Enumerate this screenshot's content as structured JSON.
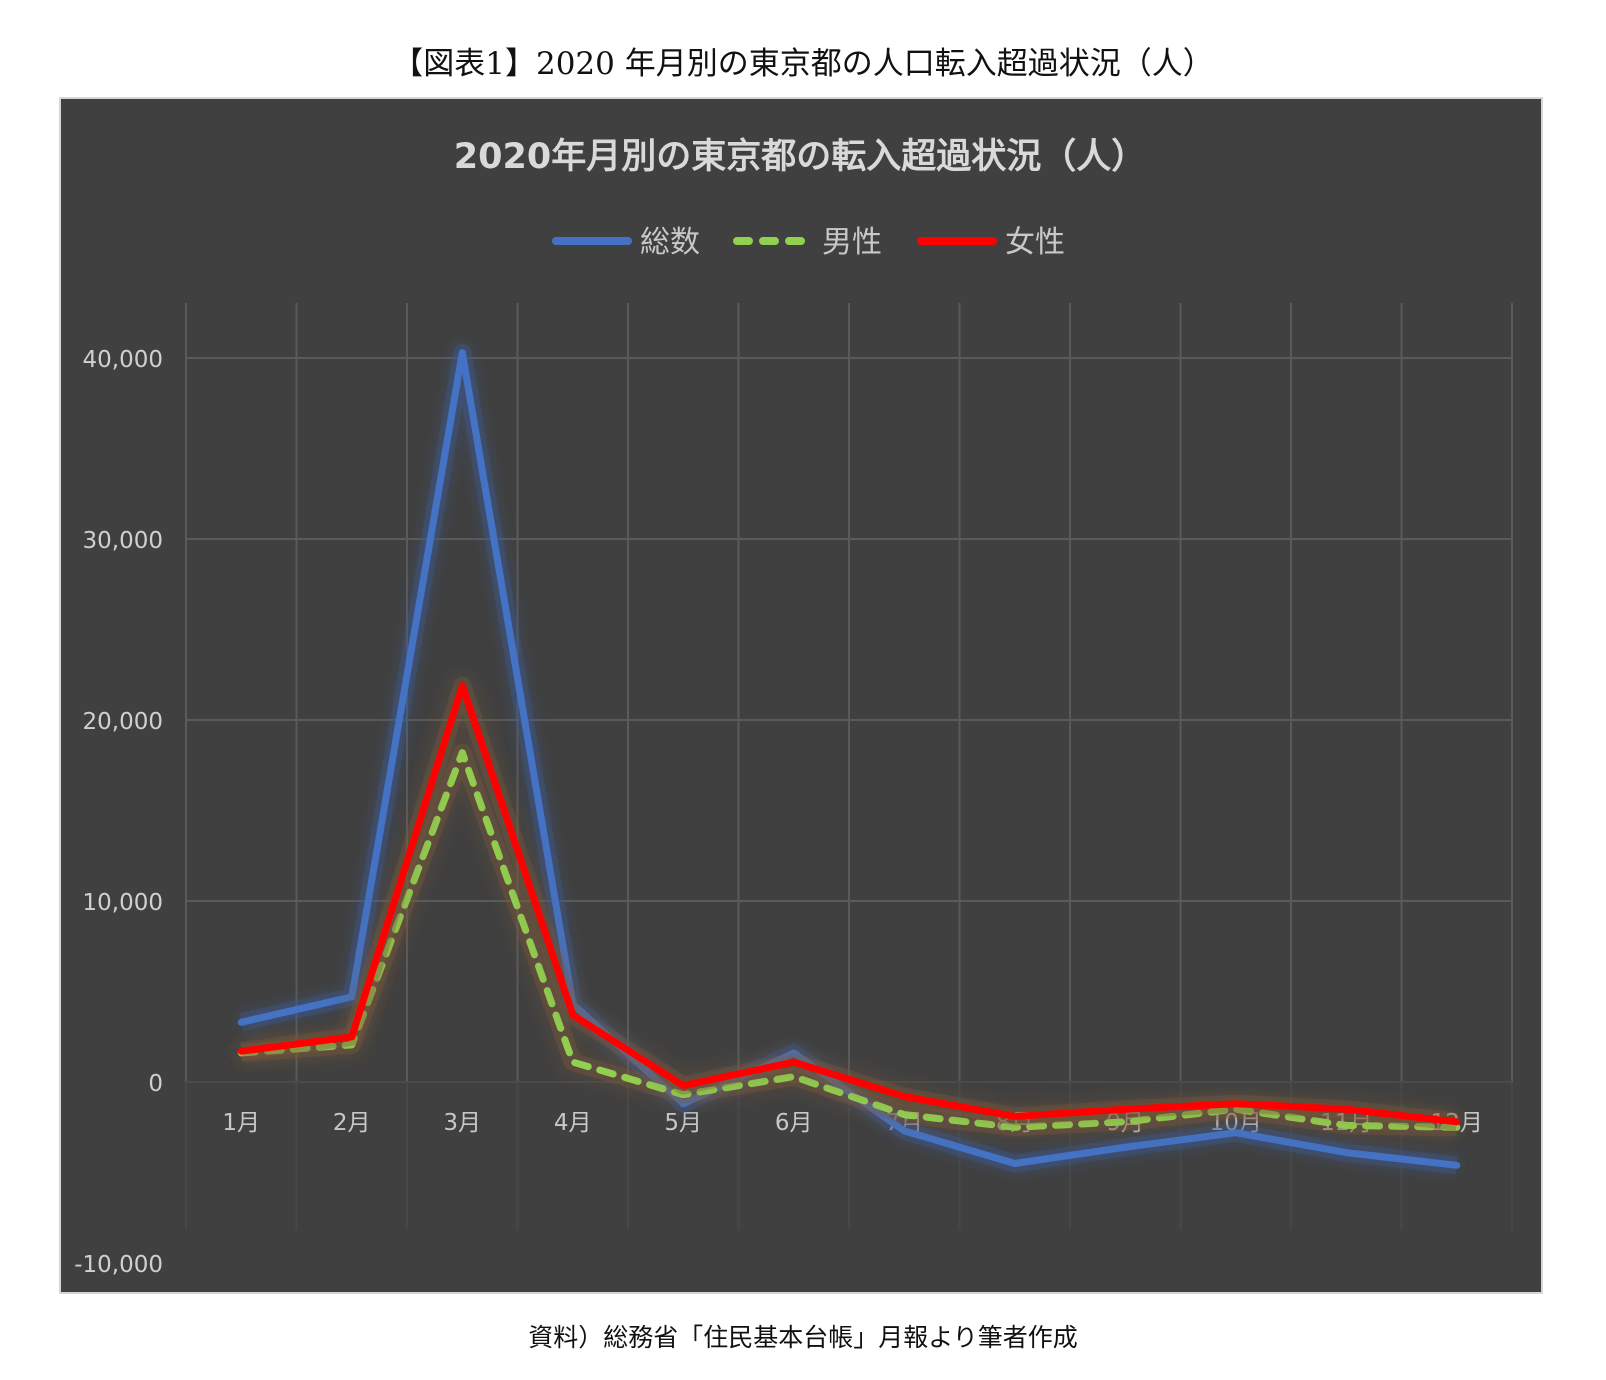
{
  "figure": {
    "caption_title": "【図表1】2020 年月別の東京都の人口転入超過状況（人）",
    "source_note": "資料）総務省「住民基本台帳」月報より筆者作成"
  },
  "colors": {
    "background": "#404040",
    "grid": "#5a5a5a",
    "text": "#d9d9d9",
    "total": "#4472c4",
    "male": "#92d050",
    "female": "#ff0000"
  },
  "chart_data": {
    "type": "line",
    "title": "2020年月別の東京都の転入超過状況（人）",
    "xlabel": "",
    "ylabel": "",
    "categories": [
      "1月",
      "2月",
      "3月",
      "4月",
      "5月",
      "6月",
      "7月",
      "8月",
      "9月",
      "10月",
      "11月",
      "12月"
    ],
    "series": [
      {
        "name": "総数",
        "style": "solid",
        "color": "#4472c4",
        "values": [
          3300,
          4700,
          40300,
          4300,
          -1200,
          1600,
          -2700,
          -4500,
          -3600,
          -2800,
          -3900,
          -4600
        ]
      },
      {
        "name": "男性",
        "style": "dashed",
        "color": "#92d050",
        "values": [
          1600,
          2050,
          18200,
          1100,
          -700,
          300,
          -1800,
          -2500,
          -2200,
          -1500,
          -2400,
          -2500
        ]
      },
      {
        "name": "女性",
        "style": "solid",
        "color": "#ff0000",
        "values": [
          1700,
          2500,
          21900,
          3700,
          -200,
          1100,
          -800,
          -1900,
          -1500,
          -1200,
          -1500,
          -2200
        ]
      }
    ],
    "yticks": [
      -10000,
      0,
      10000,
      20000,
      30000,
      40000
    ],
    "ytick_labels": [
      "-10,000",
      "0",
      "10,000",
      "20,000",
      "30,000",
      "40,000"
    ],
    "ylim": [
      -10000,
      43000
    ],
    "grid": true,
    "legend_position": "top"
  }
}
